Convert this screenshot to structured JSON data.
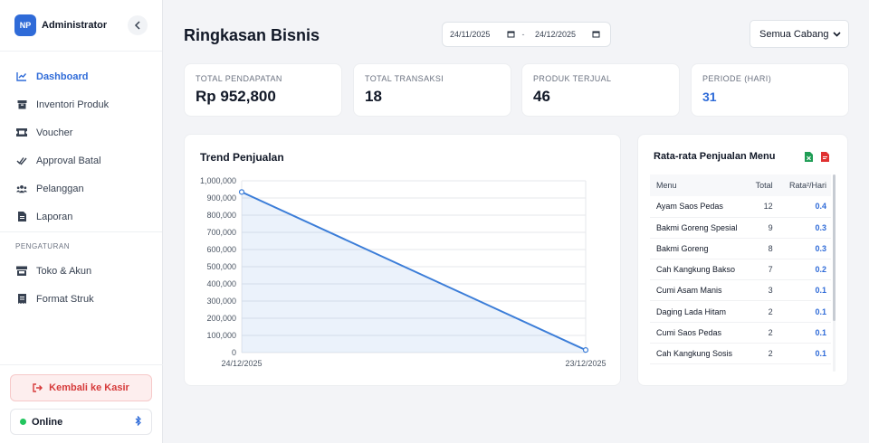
{
  "sidebar": {
    "avatar_initials": "NP",
    "user_name": "Administrator",
    "nav_items": [
      {
        "label": "Dashboard",
        "icon": "chart-line-icon",
        "active": true
      },
      {
        "label": "Inventori Produk",
        "icon": "box-icon"
      },
      {
        "label": "Voucher",
        "icon": "ticket-icon"
      },
      {
        "label": "Approval Batal",
        "icon": "double-check-icon"
      },
      {
        "label": "Pelanggan",
        "icon": "users-icon"
      },
      {
        "label": "Laporan",
        "icon": "file-icon"
      }
    ],
    "section_title": "PENGATURAN",
    "settings_items": [
      {
        "label": "Toko & Akun",
        "icon": "store-icon"
      },
      {
        "label": "Format Struk",
        "icon": "receipt-icon"
      }
    ],
    "back_button": "Kembali ke Kasir",
    "status_label": "Online"
  },
  "header": {
    "title": "Ringkasan Bisnis",
    "date_from": "24/11/2025",
    "date_separator": "-",
    "date_to": "24/12/2025",
    "branch": "Semua Cabang"
  },
  "stats": [
    {
      "label": "TOTAL PENDAPATAN",
      "value": "Rp 952,800"
    },
    {
      "label": "TOTAL TRANSAKSI",
      "value": "18"
    },
    {
      "label": "PRODUK TERJUAL",
      "value": "46"
    },
    {
      "label": "PERIODE (HARI)",
      "value": "31"
    }
  ],
  "chart": {
    "title": "Trend Penjualan",
    "y_ticks": [
      "1,000,000",
      "900,000",
      "800,000",
      "700,000",
      "600,000",
      "500,000",
      "400,000",
      "300,000",
      "200,000",
      "100,000",
      "0"
    ],
    "x_ticks": [
      "24/12/2025",
      "23/12/2025"
    ]
  },
  "chart_data": {
    "type": "area",
    "title": "Trend Penjualan",
    "x": [
      "24/12/2025",
      "23/12/2025"
    ],
    "series": [
      {
        "values": [
          935000,
          15000
        ],
        "color": "#3b7dd8"
      }
    ],
    "ylim": [
      0,
      1000000
    ],
    "grid": true
  },
  "table": {
    "title": "Rata-rata Penjualan Menu",
    "headers": {
      "menu": "Menu",
      "total": "Total",
      "avg": "Rata²/Hari"
    },
    "rows": [
      {
        "menu": "Ayam Saos Pedas",
        "total": "12",
        "avg": "0.4"
      },
      {
        "menu": "Bakmi Goreng Spesial",
        "total": "9",
        "avg": "0.3"
      },
      {
        "menu": "Bakmi Goreng",
        "total": "8",
        "avg": "0.3"
      },
      {
        "menu": "Cah Kangkung Bakso",
        "total": "7",
        "avg": "0.2"
      },
      {
        "menu": "Cumi Asam Manis",
        "total": "3",
        "avg": "0.1"
      },
      {
        "menu": "Daging Lada Hitam",
        "total": "2",
        "avg": "0.1"
      },
      {
        "menu": "Cumi Saos Pedas",
        "total": "2",
        "avg": "0.1"
      },
      {
        "menu": "Cah Kangkung Sosis",
        "total": "2",
        "avg": "0.1"
      }
    ]
  },
  "colors": {
    "accent": "#2f6bd8",
    "danger": "#d63b3b",
    "online": "#22c55e",
    "excel": "#1f9d55",
    "pdf": "#e03131"
  }
}
